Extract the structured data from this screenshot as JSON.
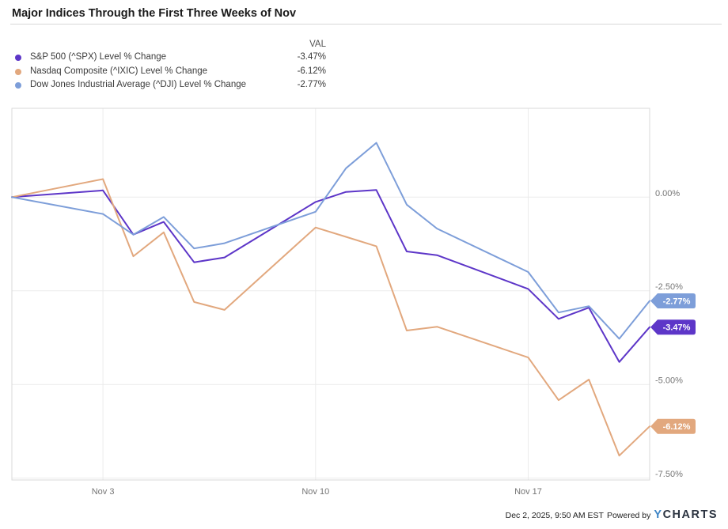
{
  "page": {
    "title": "Major Indices Through the First Three Weeks of Nov"
  },
  "legend": {
    "val_header": "VAL",
    "items": [
      {
        "label": "S&P 500 (^SPX) Level % Change",
        "value": "-3.47%",
        "color": "#5d36c8"
      },
      {
        "label": "Nasdaq Composite (^IXIC) Level % Change",
        "value": "-6.12%",
        "color": "#e2a87e"
      },
      {
        "label": "Dow Jones Industrial Average (^DJI) Level % Change",
        "value": "-2.77%",
        "color": "#7d9ed9"
      }
    ]
  },
  "footer": {
    "timestamp": "Dec 2, 2025, 9:50 AM EST",
    "powered_by": "Powered by",
    "logo_y": "Y",
    "logo_charts": "CHARTS"
  },
  "chart_data": {
    "type": "line",
    "title": "Major Indices Through the First Three Weeks of Nov",
    "xlabel": "",
    "ylabel": "Level % Change",
    "x": [
      "Oct 31",
      "Nov 3",
      "Nov 4",
      "Nov 5",
      "Nov 6",
      "Nov 7",
      "Nov 10",
      "Nov 11",
      "Nov 12",
      "Nov 13",
      "Nov 14",
      "Nov 17",
      "Nov 18",
      "Nov 19",
      "Nov 20",
      "Nov 21"
    ],
    "day_offsets": [
      0,
      3,
      4,
      5,
      6,
      7,
      10,
      11,
      12,
      13,
      14,
      17,
      18,
      19,
      20,
      21
    ],
    "series": [
      {
        "name": "S&P 500 (^SPX) Level % Change",
        "color": "#5d36c8",
        "end_label": "-3.47%",
        "values": [
          0,
          0.18,
          -1.0,
          -0.66,
          -1.74,
          -1.61,
          -0.13,
          0.14,
          0.19,
          -1.45,
          -1.55,
          -2.45,
          -3.25,
          -2.95,
          -4.4,
          -3.47
        ]
      },
      {
        "name": "Nasdaq Composite (^IXIC) Level % Change",
        "color": "#e2a87e",
        "end_label": "-6.12%",
        "values": [
          0,
          0.48,
          -1.58,
          -0.94,
          -2.8,
          -3.01,
          -0.81,
          -1.06,
          -1.31,
          -3.56,
          -3.46,
          -4.28,
          -5.42,
          -4.87,
          -6.9,
          -6.12
        ]
      },
      {
        "name": "Dow Jones Industrial Average (^DJI) Level % Change",
        "color": "#7d9ed9",
        "end_label": "-2.77%",
        "values": [
          0,
          -0.45,
          -1.0,
          -0.53,
          -1.37,
          -1.23,
          -0.39,
          0.77,
          1.45,
          -0.2,
          -0.84,
          -2.0,
          -3.08,
          -2.91,
          -3.78,
          -2.77
        ]
      }
    ],
    "x_ticks": [
      {
        "label": "Nov 3",
        "day": 3
      },
      {
        "label": "Nov 10",
        "day": 10
      },
      {
        "label": "Nov 17",
        "day": 17
      }
    ],
    "y_ticks": [
      {
        "label": "0.00%",
        "value": 0
      },
      {
        "label": "-2.50%",
        "value": -2.5
      },
      {
        "label": "-5.00%",
        "value": -5
      },
      {
        "label": "-7.50%",
        "value": -7.5
      }
    ],
    "ylim": [
      -7.55,
      2.37
    ],
    "grid": true,
    "legend_position": "top-left"
  }
}
